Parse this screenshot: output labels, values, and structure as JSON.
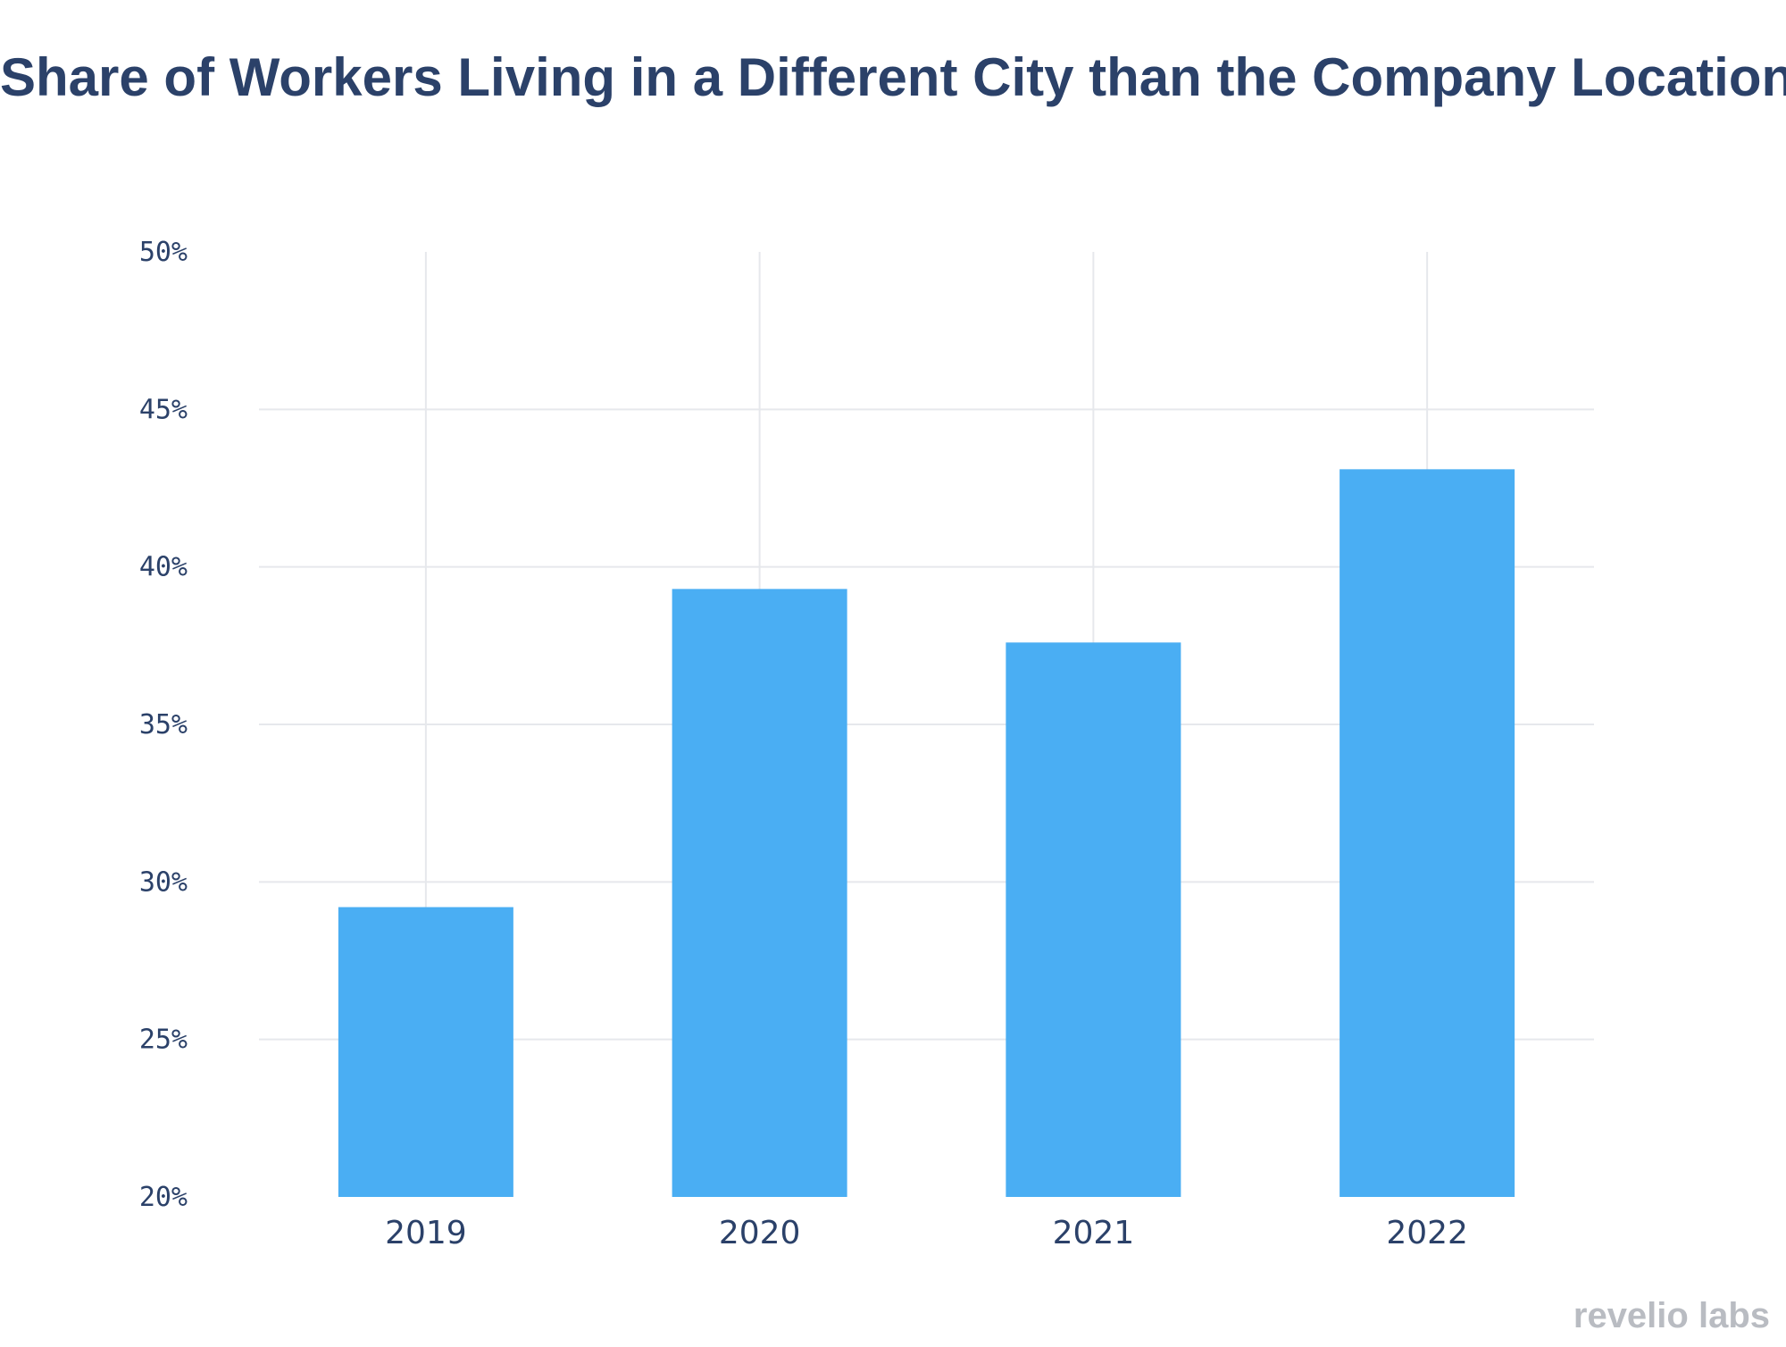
{
  "chart_data": {
    "type": "bar",
    "title": "Share of Workers Living in a Different City than the Company Location",
    "categories": [
      "2019",
      "2020",
      "2021",
      "2022"
    ],
    "values": [
      29.2,
      39.3,
      37.6,
      43.1
    ],
    "ylim": [
      20,
      50
    ],
    "yticks": [
      "20%",
      "25%",
      "30%",
      "35%",
      "40%",
      "45%",
      "50%"
    ],
    "ytick_values": [
      20,
      25,
      30,
      35,
      40,
      45,
      50
    ],
    "xlabel": "",
    "ylabel": "",
    "grid": true,
    "legend": false,
    "colors": {
      "bar": "#4aaef3",
      "text": "#2b4169",
      "grid": "#e6e8ec"
    }
  },
  "brand": {
    "text": "revelio labs",
    "color": "#b9bcc2"
  }
}
